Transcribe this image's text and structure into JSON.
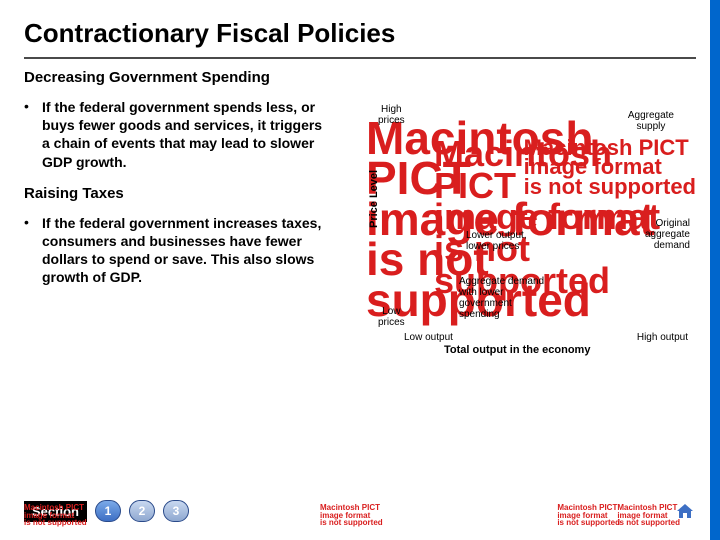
{
  "title": "Contractionary Fiscal Policies",
  "subhead1": "Decreasing Government Spending",
  "bullet1": "If the federal government spends less, or buys fewer goods and services, it triggers a chain of events that may lead to slower GDP growth.",
  "subhead2": "Raising Taxes",
  "bullet2": "If the federal government increases taxes, consumers and businesses have fewer dollars to spend or save.  This also slows growth of GDP.",
  "chart": {
    "y_axis_label": "Price Level",
    "high_prices": "High\nprices",
    "low_prices": "Low\nprices",
    "agg_supply": "Aggregate\nsupply",
    "lower_output_prices": "Lower output,\nlower prices",
    "agg_demand_lower": "Aggregate demand\nwith lower\ngovernment\nspending",
    "orig_agg_demand": "Original\naggregate\ndemand",
    "low_output": "Low output",
    "high_output": "High output",
    "x_axis_label": "Total output in the economy"
  },
  "nav": {
    "section": "Section",
    "btn1": "1",
    "btn2": "2",
    "btn3": "3"
  },
  "pict_text": "Macintosh PICT\nimage format\nis not supported",
  "colors": {
    "blue_strip": "#0066cc",
    "pict_red": "#d91e1e",
    "pill_blue": "#3d6fc4"
  }
}
